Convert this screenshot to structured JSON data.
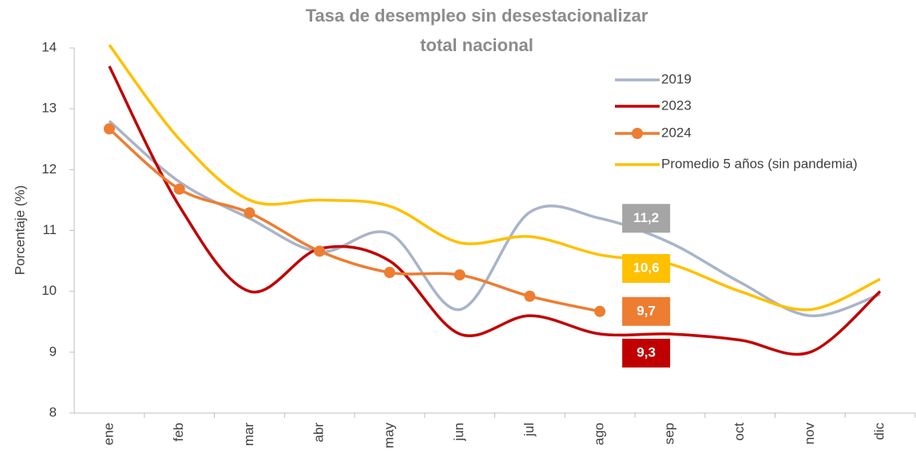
{
  "chart_data": {
    "type": "line",
    "title": [
      "Tasa de desempleo sin desestacionalizar",
      "total nacional"
    ],
    "y_label": "Porcentaje (%)",
    "categories": [
      "ene",
      "feb",
      "mar",
      "abr",
      "may",
      "jun",
      "jul",
      "ago",
      "sep",
      "oct",
      "nov",
      "dic"
    ],
    "series": [
      {
        "name": "2019",
        "color": "#a9b4c8",
        "label_color": "#a5a5a5",
        "markers": false,
        "values": [
          12.8,
          11.8,
          11.2,
          10.65,
          10.95,
          9.7,
          11.3,
          11.2,
          10.8,
          10.15,
          9.6,
          9.95
        ],
        "value_labels": [
          null,
          null,
          null,
          null,
          null,
          null,
          null,
          "11,2",
          null,
          null,
          null,
          null
        ]
      },
      {
        "name": "2023",
        "color": "#c00000",
        "label_color": "#c00000",
        "markers": false,
        "values": [
          13.7,
          11.4,
          10.0,
          10.7,
          10.5,
          9.3,
          9.6,
          9.3,
          9.3,
          9.2,
          9.0,
          10.0
        ],
        "value_labels": [
          null,
          null,
          null,
          null,
          null,
          null,
          null,
          "9,3",
          null,
          null,
          null,
          null
        ]
      },
      {
        "name": "2024",
        "color": "#ed7d31",
        "label_color": "#ed7d31",
        "markers": true,
        "values": [
          12.67,
          11.68,
          11.29,
          10.66,
          10.31,
          10.27,
          9.92,
          9.67,
          null,
          null,
          null,
          null
        ],
        "value_labels": [
          null,
          null,
          null,
          null,
          null,
          null,
          null,
          "9,7",
          null,
          null,
          null,
          null
        ]
      },
      {
        "name": "Promedio 5 años (sin pandemia)",
        "color": "#ffc000",
        "label_color": "#ffc000",
        "markers": false,
        "values": [
          14.05,
          12.5,
          11.5,
          11.5,
          11.4,
          10.8,
          10.9,
          10.6,
          10.45,
          10.0,
          9.7,
          10.2
        ],
        "value_labels": [
          null,
          null,
          null,
          null,
          null,
          null,
          null,
          "10,6",
          null,
          null,
          null,
          null
        ]
      }
    ],
    "ylim": [
      8,
      14
    ],
    "yticks": [
      8,
      9,
      10,
      11,
      12,
      13,
      14
    ],
    "legend": "top-right"
  }
}
